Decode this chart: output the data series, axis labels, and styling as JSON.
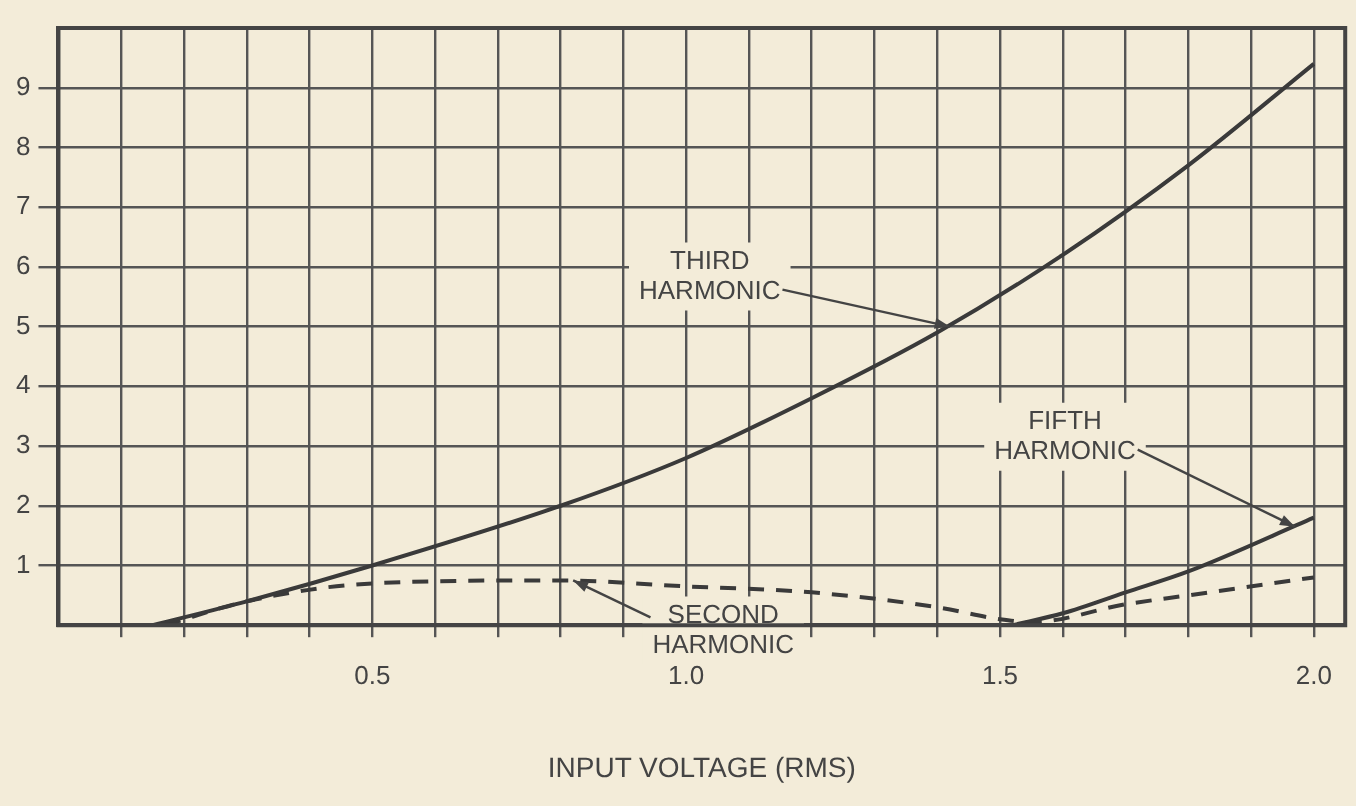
{
  "chart_data": {
    "type": "line",
    "xlabel": "INPUT VOLTAGE (RMS)",
    "xlim": [
      0,
      2.05
    ],
    "ylim": [
      0,
      10
    ],
    "xticks": [
      {
        "value": 0.1,
        "label": null
      },
      {
        "value": 0.2,
        "label": null
      },
      {
        "value": 0.3,
        "label": null
      },
      {
        "value": 0.4,
        "label": null
      },
      0.5,
      {
        "value": 0.6,
        "label": null
      },
      {
        "value": 0.7,
        "label": null
      },
      {
        "value": 0.8,
        "label": null
      },
      {
        "value": 0.9,
        "label": null
      },
      {
        "value": 1.0,
        "label": "1.0"
      },
      {
        "value": 1.1,
        "label": null
      },
      {
        "value": 1.2,
        "label": null
      },
      {
        "value": 1.3,
        "label": null
      },
      {
        "value": 1.4,
        "label": null
      },
      1.5,
      {
        "value": 1.6,
        "label": null
      },
      {
        "value": 1.7,
        "label": null
      },
      {
        "value": 1.8,
        "label": null
      },
      {
        "value": 1.9,
        "label": null
      },
      {
        "value": 2.0,
        "label": "2.0"
      }
    ],
    "yticks": [
      1,
      2,
      3,
      4,
      5,
      6,
      7,
      8,
      9
    ],
    "grid": true,
    "marker": "none",
    "series": [
      {
        "color": "#3a3a3a",
        "line_style": "solid",
        "x": [
          0.15,
          0.3,
          0.5,
          0.8,
          1.0,
          1.2,
          1.4,
          1.6,
          1.8,
          2.0
        ],
        "values": [
          0,
          0.4,
          1.0,
          2.0,
          2.8,
          3.8,
          4.9,
          6.2,
          7.7,
          9.4
        ]
      },
      {
        "color": "#3a3a3a",
        "line_style": "dashed",
        "x": [
          0.17,
          0.3,
          0.5,
          0.8,
          1.0,
          1.2,
          1.4,
          1.5,
          1.55,
          1.7,
          1.8,
          2.0
        ],
        "values": [
          0,
          0.4,
          0.7,
          0.75,
          0.65,
          0.55,
          0.3,
          0.1,
          0.05,
          0.35,
          0.5,
          0.8
        ]
      },
      {
        "color": "#3a3a3a",
        "line_style": "solid",
        "x": [
          1.52,
          1.6,
          1.7,
          1.8,
          2.0
        ],
        "values": [
          0,
          0.2,
          0.55,
          0.9,
          1.8
        ]
      }
    ],
    "annotations": [
      {
        "text": "THIRD HARMONIC",
        "x": 1.42,
        "y": 5.0
      },
      {
        "text": "SECOND HARMONIC",
        "x": 0.82,
        "y": 0.75
      },
      {
        "text": "FIFTH HARMONIC",
        "x": 1.97,
        "y": 1.65
      }
    ]
  }
}
